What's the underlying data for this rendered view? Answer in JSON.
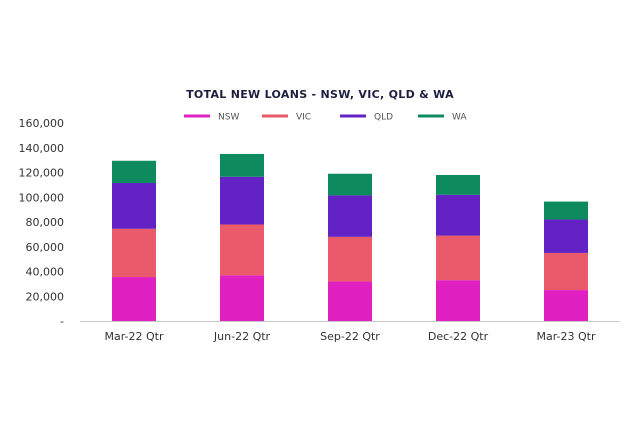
{
  "chart_data": {
    "type": "bar",
    "stacked": true,
    "title": "TOTAL NEW LOANS - NSW, VIC, QLD & WA",
    "categories": [
      "Mar-22 Qtr",
      "Jun-22 Qtr",
      "Sep-22 Qtr",
      "Dec-22 Qtr",
      "Mar-23 Qtr"
    ],
    "series": [
      {
        "name": "NSW",
        "color": "#e020c0",
        "values": [
          35500,
          37000,
          32000,
          33000,
          25000
        ]
      },
      {
        "name": "VIC",
        "color": "#ea5a6a",
        "values": [
          39000,
          41000,
          36000,
          36000,
          30000
        ]
      },
      {
        "name": "QLD",
        "color": "#6222c4",
        "values": [
          37000,
          38500,
          33500,
          33000,
          27000
        ]
      },
      {
        "name": "WA",
        "color": "#0e8a5f",
        "values": [
          18000,
          18500,
          17500,
          16000,
          14500
        ]
      }
    ],
    "ylim": [
      0,
      160000
    ],
    "yticks": [
      0,
      20000,
      40000,
      60000,
      80000,
      100000,
      120000,
      140000,
      160000
    ],
    "ytick_labels": [
      "-",
      "20,000",
      "40,000",
      "60,000",
      "80,000",
      "100,000",
      "120,000",
      "140,000",
      "160,000"
    ],
    "legend_position": "top",
    "grid": false
  }
}
